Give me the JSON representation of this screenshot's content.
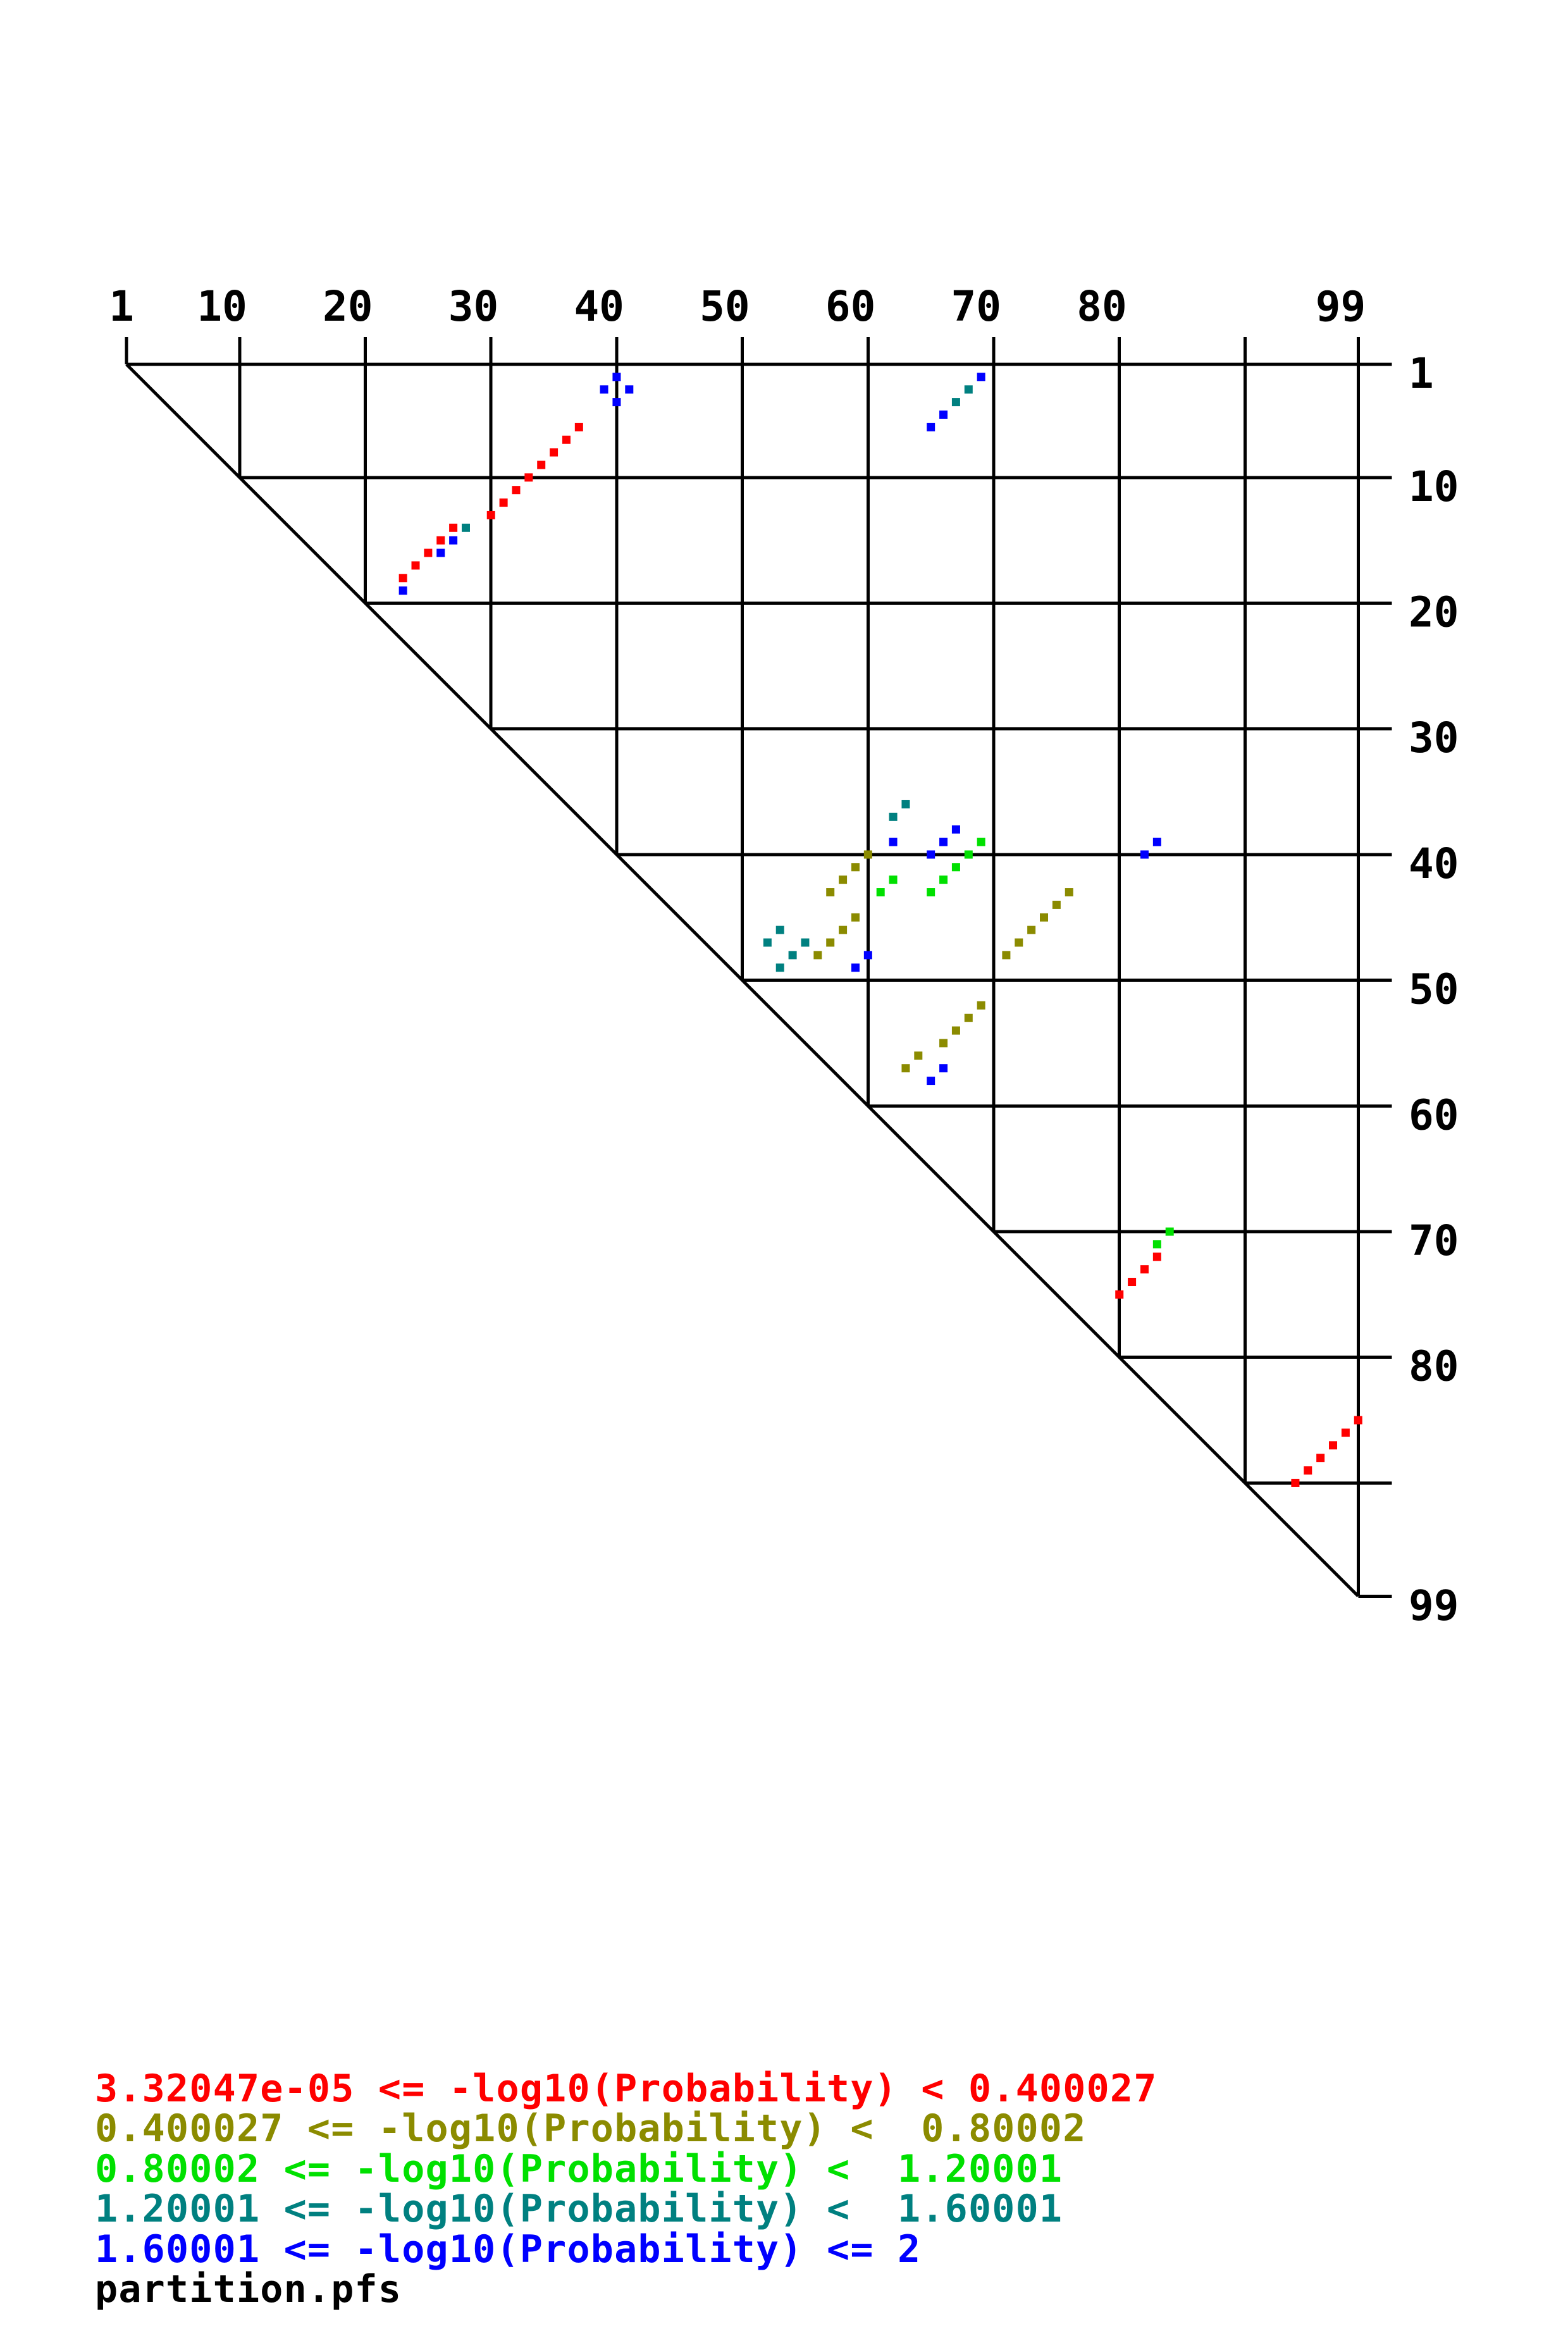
{
  "page": {
    "background": "#ffffff",
    "text_color": "#000000"
  },
  "footer": {
    "filename": "partition.pfs"
  },
  "chart_data": {
    "type": "scatter",
    "title": "",
    "description_semantics": "triangular base-pair probability dot plot; x = column index (top axis), y = row index (right axis), dots colored by -log10(Probability) bin",
    "n": 99,
    "x_axis": {
      "position": "top",
      "range": [
        1,
        99
      ],
      "ticks": [
        1,
        10,
        20,
        30,
        40,
        50,
        60,
        70,
        80,
        90,
        99
      ],
      "labeled_ticks": [
        1,
        10,
        20,
        30,
        40,
        50,
        60,
        70,
        80,
        99
      ]
    },
    "y_axis": {
      "position": "right",
      "range": [
        1,
        99
      ],
      "ticks": [
        1,
        10,
        20,
        30,
        40,
        50,
        60,
        70,
        80,
        90,
        99
      ],
      "labeled_ticks": [
        1,
        10,
        20,
        30,
        40,
        50,
        60,
        70,
        80,
        99
      ]
    },
    "grid": true,
    "diagonal": true,
    "line_color": "#000000",
    "bins": [
      {
        "id": 1,
        "color": "#ff0000",
        "label": "3.32047e-05 <= -log10(Probability) < 0.400027"
      },
      {
        "id": 2,
        "color": "#8b8b00",
        "label": "0.400027 <= -log10(Probability) <  0.80002"
      },
      {
        "id": 3,
        "color": "#00e000",
        "label": "0.80002 <= -log10(Probability) <  1.20001"
      },
      {
        "id": 4,
        "color": "#008080",
        "label": "1.20001 <= -log10(Probability) <  1.60001"
      },
      {
        "id": 5,
        "color": "#0000ff",
        "label": "1.60001 <= -log10(Probability) <= 2"
      }
    ],
    "points_format": [
      "row_i",
      "col_j",
      "bin_id"
    ],
    "points": [
      [
        2,
        40,
        5
      ],
      [
        3,
        39,
        5
      ],
      [
        3,
        41,
        5
      ],
      [
        4,
        40,
        5
      ],
      [
        2,
        69,
        5
      ],
      [
        3,
        68,
        4
      ],
      [
        4,
        67,
        4
      ],
      [
        5,
        66,
        5
      ],
      [
        6,
        65,
        5
      ],
      [
        6,
        37,
        1
      ],
      [
        7,
        36,
        1
      ],
      [
        8,
        35,
        1
      ],
      [
        9,
        34,
        1
      ],
      [
        10,
        33,
        1
      ],
      [
        11,
        32,
        1
      ],
      [
        12,
        31,
        1
      ],
      [
        13,
        30,
        1
      ],
      [
        14,
        27,
        1
      ],
      [
        14,
        28,
        4
      ],
      [
        15,
        26,
        1
      ],
      [
        15,
        27,
        5
      ],
      [
        16,
        25,
        1
      ],
      [
        16,
        26,
        5
      ],
      [
        17,
        24,
        1
      ],
      [
        18,
        23,
        1
      ],
      [
        19,
        23,
        5
      ],
      [
        36,
        63,
        4
      ],
      [
        37,
        62,
        4
      ],
      [
        38,
        67,
        5
      ],
      [
        39,
        62,
        5
      ],
      [
        39,
        66,
        5
      ],
      [
        39,
        69,
        3
      ],
      [
        39,
        83,
        5
      ],
      [
        40,
        60,
        2
      ],
      [
        40,
        65,
        5
      ],
      [
        40,
        68,
        3
      ],
      [
        40,
        82,
        5
      ],
      [
        41,
        59,
        2
      ],
      [
        41,
        67,
        3
      ],
      [
        42,
        58,
        2
      ],
      [
        42,
        62,
        3
      ],
      [
        42,
        66,
        3
      ],
      [
        43,
        57,
        2
      ],
      [
        43,
        61,
        3
      ],
      [
        43,
        65,
        3
      ],
      [
        43,
        76,
        2
      ],
      [
        44,
        75,
        2
      ],
      [
        45,
        59,
        2
      ],
      [
        45,
        74,
        2
      ],
      [
        46,
        53,
        4
      ],
      [
        46,
        58,
        2
      ],
      [
        46,
        73,
        2
      ],
      [
        47,
        52,
        4
      ],
      [
        47,
        55,
        4
      ],
      [
        47,
        57,
        2
      ],
      [
        47,
        72,
        2
      ],
      [
        48,
        54,
        4
      ],
      [
        48,
        56,
        2
      ],
      [
        48,
        60,
        5
      ],
      [
        48,
        71,
        2
      ],
      [
        49,
        53,
        4
      ],
      [
        49,
        59,
        5
      ],
      [
        52,
        69,
        2
      ],
      [
        53,
        68,
        2
      ],
      [
        54,
        67,
        2
      ],
      [
        55,
        66,
        2
      ],
      [
        56,
        64,
        2
      ],
      [
        57,
        63,
        2
      ],
      [
        57,
        66,
        5
      ],
      [
        58,
        65,
        5
      ],
      [
        70,
        84,
        3
      ],
      [
        71,
        83,
        3
      ],
      [
        72,
        83,
        1
      ],
      [
        73,
        82,
        1
      ],
      [
        74,
        81,
        1
      ],
      [
        75,
        80,
        1
      ],
      [
        85,
        99,
        1
      ],
      [
        86,
        98,
        1
      ],
      [
        87,
        97,
        1
      ],
      [
        88,
        96,
        1
      ],
      [
        89,
        95,
        1
      ],
      [
        90,
        94,
        1
      ]
    ]
  },
  "legend": {
    "position": "bottom-left"
  }
}
